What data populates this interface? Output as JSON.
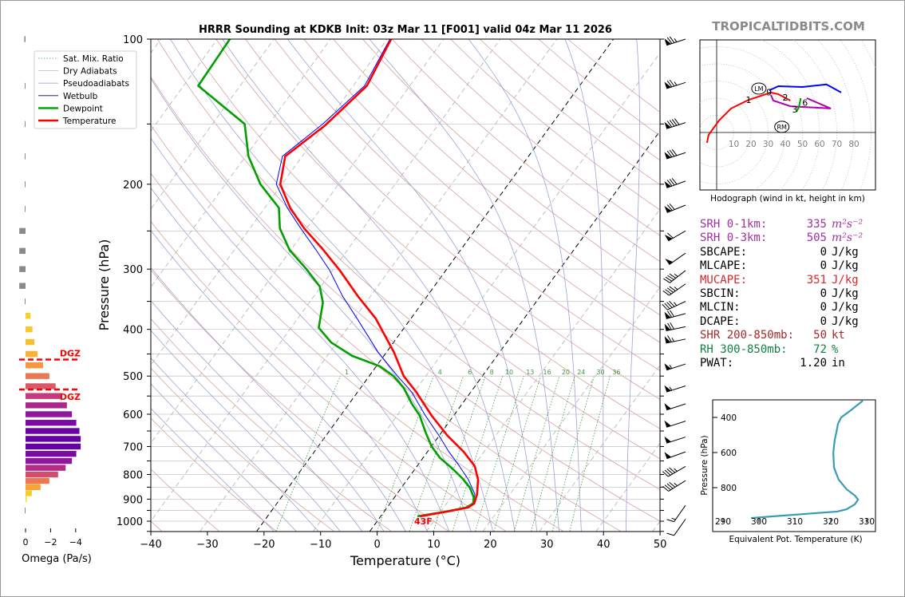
{
  "title": "HRRR Sounding at KDKB Init: 03z Mar 11 [F001] valid 04z Mar 11 2026",
  "watermark": "TROPICALTIDBITS.COM",
  "surface_temp_label": "43F",
  "colors": {
    "temperature": "#ff0000",
    "dewpoint": "#00a000",
    "wetbulb": "#0000ff",
    "dry_adiabat": "#d9a0a0",
    "pseudoadiabat": "#a0a0d8",
    "mix_ratio": "#3c9a3c",
    "theta_e": "#3a9bb5",
    "srh": "#a030a0",
    "mucape": "#d62728",
    "shear": "#a52a2a",
    "rh": "#108040"
  },
  "legend": [
    {
      "key": "mix",
      "label": "Sat. Mix. Ratio"
    },
    {
      "key": "dry",
      "label": "Dry Adiabats"
    },
    {
      "key": "pseudo",
      "label": "Pseudoadiabats"
    },
    {
      "key": "wb",
      "label": "Wetbulb"
    },
    {
      "key": "td",
      "label": "Dewpoint"
    },
    {
      "key": "t",
      "label": "Temperature"
    }
  ],
  "dgz_label": "DGZ",
  "stats": [
    {
      "label": "SRH 0-1km:",
      "value": "335",
      "unit": "m²s⁻²",
      "color": "#a030a0",
      "italic": true
    },
    {
      "label": "SRH 0-3km:",
      "value": "505",
      "unit": "m²s⁻²",
      "color": "#a030a0",
      "italic": true
    },
    {
      "label": "SBCAPE:",
      "value": "0",
      "unit": "J/kg",
      "color": "#000000"
    },
    {
      "label": "MLCAPE:",
      "value": "0",
      "unit": "J/kg",
      "color": "#000000"
    },
    {
      "label": "MUCAPE:",
      "value": "351",
      "unit": "J/kg",
      "color": "#d62728"
    },
    {
      "label": "SBCIN:",
      "value": "0",
      "unit": "J/kg",
      "color": "#000000"
    },
    {
      "label": "MLCIN:",
      "value": "0",
      "unit": "J/kg",
      "color": "#000000"
    },
    {
      "label": "DCAPE:",
      "value": "0",
      "unit": "J/kg",
      "color": "#000000"
    },
    {
      "label": "SHR 200-850mb:",
      "value": "50",
      "unit": "kt",
      "color": "#a52a2a"
    },
    {
      "label": "RH 300-850mb:",
      "value": "72",
      "unit": "%",
      "color": "#108040"
    },
    {
      "label": "PWAT:",
      "value": "1.20",
      "unit": "in",
      "color": "#000000"
    }
  ],
  "chart_data": [
    {
      "type": "line",
      "title": "HRRR Sounding at KDKB Init: 03z Mar 11 [F001] valid 04z Mar 11 2026",
      "xlabel": "Temperature (°C)",
      "ylabel": "Pressure (hPa)",
      "xlim": [
        -40,
        50
      ],
      "ylim": [
        1050,
        100
      ],
      "x_ticks": [
        "−40",
        "−30",
        "−20",
        "−10",
        "0",
        "10",
        "20",
        "30",
        "40",
        "50"
      ],
      "x_tick_values": [
        -40,
        -30,
        -20,
        -10,
        0,
        10,
        20,
        30,
        40,
        50
      ],
      "y_ticks": [
        "100",
        "200",
        "300",
        "400",
        "500",
        "600",
        "700",
        "800",
        "900",
        "1000"
      ],
      "y_tick_values": [
        100,
        200,
        300,
        400,
        500,
        600,
        700,
        800,
        900,
        1000
      ],
      "mix_ratio_labels": [
        "1",
        "4",
        "6",
        "8",
        "10",
        "13",
        "16",
        "20",
        "24",
        "30",
        "36"
      ],
      "mix_ratio_values": [
        1,
        4,
        6,
        8,
        10,
        13,
        16,
        20,
        24,
        30,
        36
      ],
      "highlight_isotherms": [
        -20,
        0
      ],
      "series": [
        {
          "name": "Temperature",
          "key": "t",
          "points": [
            [
              100,
              -59.3
            ],
            [
              125,
              -57.6
            ],
            [
              151,
              -59.9
            ],
            [
              175,
              -63
            ],
            [
              200,
              -60.3
            ],
            [
              224,
              -55.5
            ],
            [
              247,
              -50.4
            ],
            [
              274,
              -44.2
            ],
            [
              302,
              -38.7
            ],
            [
              341,
              -32.3
            ],
            [
              380,
              -26.2
            ],
            [
              446,
              -18.7
            ],
            [
              500,
              -13.9
            ],
            [
              539,
              -9.7
            ],
            [
              604,
              -3.9
            ],
            [
              665,
              1.5
            ],
            [
              718,
              6.4
            ],
            [
              769,
              10.2
            ],
            [
              820,
              12.5
            ],
            [
              879,
              14.2
            ],
            [
              919,
              14.9
            ],
            [
              937,
              14.3
            ],
            [
              955,
              11.2
            ],
            [
              977,
              7.0
            ]
          ]
        },
        {
          "name": "Dewpoint",
          "key": "td",
          "points": [
            [
              100,
              -87.8
            ],
            [
              125,
              -87.4
            ],
            [
              150,
              -74.3
            ],
            [
              175,
              -69.5
            ],
            [
              200,
              -63.8
            ],
            [
              224,
              -57.5
            ],
            [
              247,
              -54.7
            ],
            [
              274,
              -50.2
            ],
            [
              299,
              -45
            ],
            [
              326,
              -40.2
            ],
            [
              352,
              -37.6
            ],
            [
              397,
              -35.1
            ],
            [
              426,
              -31
            ],
            [
              454,
              -25.6
            ],
            [
              477,
              -19.4
            ],
            [
              500,
              -15.7
            ],
            [
              529,
              -12.4
            ],
            [
              571,
              -8.9
            ],
            [
              604,
              -6
            ],
            [
              653,
              -2.9
            ],
            [
              699,
              0
            ],
            [
              738,
              2.9
            ],
            [
              775,
              6.3
            ],
            [
              814,
              9.5
            ],
            [
              852,
              12.1
            ],
            [
              892,
              14
            ],
            [
              919,
              14.7
            ],
            [
              937,
              14
            ],
            [
              955,
              11
            ],
            [
              977,
              6.5
            ]
          ]
        },
        {
          "name": "Wetbulb",
          "key": "wb",
          "points": [
            [
              100,
              -59.5
            ],
            [
              125,
              -58
            ],
            [
              150,
              -60.5
            ],
            [
              175,
              -63.5
            ],
            [
              200,
              -61
            ],
            [
              224,
              -56
            ],
            [
              247,
              -51
            ],
            [
              274,
              -45.5
            ],
            [
              302,
              -40.5
            ],
            [
              341,
              -35
            ],
            [
              380,
              -29.5
            ],
            [
              446,
              -21.5
            ],
            [
              500,
              -15
            ],
            [
              539,
              -10.5
            ],
            [
              604,
              -5
            ],
            [
              665,
              0
            ],
            [
              718,
              3.8
            ],
            [
              769,
              7.5
            ],
            [
              820,
              10.8
            ],
            [
              879,
              13.8
            ],
            [
              919,
              14.8
            ],
            [
              937,
              14.1
            ],
            [
              955,
              11.1
            ],
            [
              977,
              7
            ]
          ]
        }
      ],
      "wind_barbs_kt": [
        {
          "p": 100,
          "speed": 75,
          "dir": 252
        },
        {
          "p": 123,
          "speed": 75,
          "dir": 252
        },
        {
          "p": 149,
          "speed": 90,
          "dir": 252
        },
        {
          "p": 172,
          "speed": 80,
          "dir": 252
        },
        {
          "p": 197,
          "speed": 80,
          "dir": 250
        },
        {
          "p": 221,
          "speed": 70,
          "dir": 248
        },
        {
          "p": 250,
          "speed": 60,
          "dir": 240
        },
        {
          "p": 278,
          "speed": 50,
          "dir": 235
        },
        {
          "p": 302,
          "speed": 45,
          "dir": 232
        },
        {
          "p": 322,
          "speed": 45,
          "dir": 235
        },
        {
          "p": 350,
          "speed": 45,
          "dir": 245
        },
        {
          "p": 371,
          "speed": 70,
          "dir": 255
        },
        {
          "p": 395,
          "speed": 70,
          "dir": 258
        },
        {
          "p": 419,
          "speed": 65,
          "dir": 258
        },
        {
          "p": 472,
          "speed": 55,
          "dir": 252
        },
        {
          "p": 524,
          "speed": 55,
          "dir": 252
        },
        {
          "p": 571,
          "speed": 50,
          "dir": 252
        },
        {
          "p": 620,
          "speed": 50,
          "dir": 252
        },
        {
          "p": 669,
          "speed": 50,
          "dir": 252
        },
        {
          "p": 718,
          "speed": 50,
          "dir": 250
        },
        {
          "p": 770,
          "speed": 45,
          "dir": 240
        },
        {
          "p": 824,
          "speed": 45,
          "dir": 238
        },
        {
          "p": 927,
          "speed": 15,
          "dir": 215
        },
        {
          "p": 990,
          "speed": 10,
          "dir": 215
        }
      ]
    },
    {
      "type": "line",
      "title": "Hodograph (wind in kt, height in km)",
      "ring_labels": [
        "10",
        "20",
        "30",
        "40",
        "50",
        "60",
        "70",
        "80"
      ],
      "ring_values": [
        10,
        20,
        30,
        40,
        50,
        60,
        70,
        80
      ],
      "series": [
        {
          "name": "0-3km",
          "color": "#ff0000",
          "points": [
            [
              -5.6,
              -6
            ],
            [
              -4.7,
              -1.4
            ],
            [
              1.4,
              7
            ],
            [
              8.4,
              14
            ],
            [
              18.6,
              19
            ],
            [
              31.6,
              23.3
            ],
            [
              36,
              22.3
            ],
            [
              43,
              18.6
            ]
          ]
        },
        {
          "name": "3-6km",
          "color": "#b000b0",
          "points": [
            [
              31.6,
              21.9
            ],
            [
              33,
              18.6
            ],
            [
              43,
              15.3
            ],
            [
              66.5,
              14
            ],
            [
              52.5,
              20
            ]
          ]
        },
        {
          "name": "6-9km",
          "color": "#00a000",
          "points": [
            [
              49,
              20
            ],
            [
              48,
              15
            ],
            [
              46.5,
              12
            ]
          ]
        },
        {
          "name": "9km+",
          "color": "#0000ff",
          "points": [
            [
              30.7,
              24.6
            ],
            [
              36,
              27
            ],
            [
              50,
              26.5
            ],
            [
              64,
              28
            ],
            [
              72.6,
              23.3
            ]
          ]
        }
      ],
      "height_labels": [
        {
          "text": "1",
          "u": 18.6,
          "v": 19
        },
        {
          "text": "2",
          "u": 40,
          "v": 20.5
        },
        {
          "text": "3",
          "u": 45.5,
          "v": 13.5
        },
        {
          "text": "6",
          "u": 51.5,
          "v": 17.5
        },
        {
          "text": "9",
          "u": 30.5,
          "v": 23.5
        }
      ],
      "storm_motion": [
        {
          "text": "LM",
          "u": 24.6,
          "v": 25.6
        },
        {
          "text": "RM",
          "u": 38,
          "v": 3.3
        }
      ]
    },
    {
      "type": "bar",
      "xlabel": "Omega (Pa/s)",
      "x_ticks": [
        "0",
        "−2",
        "−4"
      ],
      "x_tick_values": [
        0,
        -2,
        -4
      ],
      "dgz_bounds_hpa": [
        462,
        533
      ],
      "levels_hpa": [
        100,
        125,
        150,
        175,
        200,
        225,
        250,
        275,
        300,
        325,
        350,
        375,
        400,
        425,
        450,
        475,
        500,
        525,
        550,
        575,
        600,
        625,
        650,
        675,
        700,
        725,
        750,
        775,
        800,
        825,
        850,
        875,
        900,
        950
      ],
      "values": [
        0.1,
        0.05,
        0.05,
        0.05,
        0.05,
        0.05,
        0.5,
        0.5,
        0.5,
        0.5,
        0.05,
        -0.4,
        -0.55,
        -0.7,
        -0.95,
        -1.4,
        -1.9,
        -2.4,
        -2.9,
        -3.3,
        -3.7,
        -4.05,
        -4.3,
        -4.4,
        -4.4,
        -4.05,
        -3.7,
        -3.2,
        -2.6,
        -1.9,
        -1.2,
        -0.5,
        -0.1,
        0.05
      ]
    },
    {
      "type": "line",
      "xlabel": "Equivalent Pot. Temperature (K)",
      "ylabel": "Pressure (hPa)",
      "x_ticks": [
        "290",
        "300",
        "310",
        "320",
        "330"
      ],
      "x_tick_values": [
        290,
        300,
        310,
        320,
        330
      ],
      "y_ticks": [
        "400",
        "600",
        "800"
      ],
      "y_tick_values": [
        400,
        600,
        800
      ],
      "points": [
        [
          305,
          328.9
        ],
        [
          359,
          325.6
        ],
        [
          400,
          322.9
        ],
        [
          436,
          322
        ],
        [
          482,
          321.6
        ],
        [
          527,
          321.1
        ],
        [
          600,
          320.7
        ],
        [
          686,
          320.9
        ],
        [
          755,
          322.2
        ],
        [
          809,
          324.4
        ],
        [
          845,
          326.7
        ],
        [
          868,
          327.6
        ],
        [
          895,
          326.7
        ],
        [
          923,
          324.4
        ],
        [
          936,
          321.8
        ],
        [
          959,
          306.7
        ],
        [
          973,
          297.8
        ]
      ]
    }
  ]
}
